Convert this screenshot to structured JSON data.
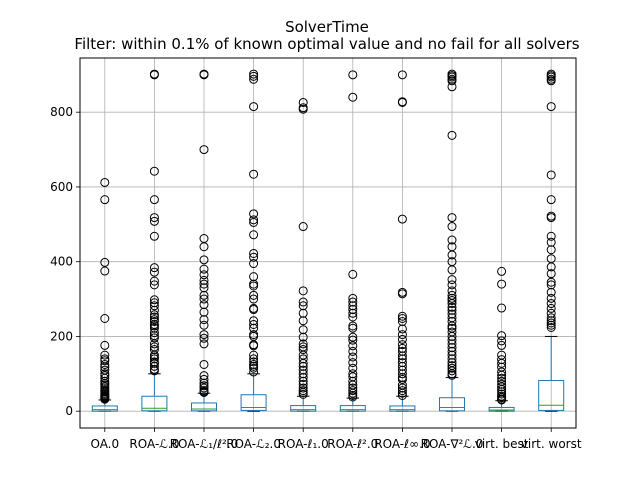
{
  "chart_data": {
    "type": "box",
    "title": "SolverTime",
    "subtitle": "Filter: within 0.1% of known optimal value and no fail for all solvers",
    "xlabel": "",
    "ylabel": "",
    "ylim": [
      -45,
      945
    ],
    "yticks": [
      0,
      200,
      400,
      600,
      800
    ],
    "grid": true,
    "categories": [
      "OA.0",
      "ROA-ℒ.0",
      "ROA-ℒ₁/ℓ².0",
      "ROA-ℒ₂.0",
      "ROA-ℓ₁.0",
      "ROA-ℓ².0",
      "ROA-ℓ∞.0",
      "ROA-∇²ℒ.0",
      "virt. best",
      "virt. worst"
    ],
    "boxes": [
      {
        "q1": 0,
        "median": 4,
        "q3": 14,
        "whisker_low": 0,
        "whisker_high": 30,
        "outliers": [
          612,
          566,
          398,
          375,
          248,
          176,
          150,
          140,
          135,
          125,
          118,
          110,
          100,
          95,
          88,
          80,
          74,
          70,
          65,
          60,
          56,
          52,
          48,
          45,
          42,
          40,
          38,
          36,
          34,
          32
        ]
      },
      {
        "q1": 1,
        "median": 8,
        "q3": 40,
        "whisker_low": 0,
        "whisker_high": 100,
        "outliers": [
          902,
          900,
          642,
          566,
          518,
          508,
          468,
          384,
          372,
          348,
          338,
          298,
          290,
          282,
          270,
          258,
          252,
          245,
          240,
          232,
          228,
          222,
          210,
          202,
          196,
          180,
          172,
          165,
          150,
          145,
          140,
          132,
          128,
          120,
          112,
          108
        ]
      },
      {
        "q1": 1,
        "median": 6,
        "q3": 22,
        "whisker_low": 0,
        "whisker_high": 48,
        "outliers": [
          902,
          900,
          700,
          462,
          440,
          405,
          380,
          365,
          350,
          340,
          330,
          310,
          300,
          285,
          265,
          245,
          230,
          205,
          195,
          180,
          125,
          95,
          85,
          75,
          68,
          62,
          55,
          52,
          50
        ]
      },
      {
        "q1": 2,
        "median": 10,
        "q3": 44,
        "whisker_low": 0,
        "whisker_high": 100,
        "outliers": [
          902,
          896,
          888,
          815,
          634,
          528,
          512,
          505,
          472,
          422,
          412,
          395,
          360,
          340,
          335,
          310,
          300,
          275,
          272,
          242,
          232,
          222,
          205,
          200,
          178,
          175,
          150,
          140,
          132,
          125,
          120,
          115,
          105
        ]
      },
      {
        "q1": 0,
        "median": 4,
        "q3": 15,
        "whisker_low": 0,
        "whisker_high": 40,
        "outliers": [
          826,
          812,
          808,
          494,
          322,
          292,
          282,
          262,
          242,
          218,
          198,
          180,
          172,
          165,
          150,
          140,
          128,
          120,
          110,
          100,
          90,
          80,
          72,
          62,
          55,
          50,
          45
        ]
      },
      {
        "q1": 0,
        "median": 4,
        "q3": 15,
        "whisker_low": 0,
        "whisker_high": 35,
        "outliers": [
          900,
          840,
          366,
          302,
          292,
          282,
          272,
          262,
          252,
          228,
          222,
          198,
          190,
          175,
          160,
          145,
          130,
          115,
          100,
          92,
          80,
          70,
          62,
          55,
          48,
          42,
          38
        ]
      },
      {
        "q1": 0,
        "median": 4,
        "q3": 14,
        "whisker_low": 0,
        "whisker_high": 40,
        "outliers": [
          900,
          828,
          826,
          514,
          318,
          314,
          254,
          248,
          240,
          220,
          205,
          192,
          178,
          168,
          160,
          148,
          140,
          130,
          120,
          110,
          100,
          90,
          85,
          70,
          62,
          55,
          48,
          42
        ]
      },
      {
        "q1": 1,
        "median": 10,
        "q3": 36,
        "whisker_low": 0,
        "whisker_high": 90,
        "outliers": [
          902,
          898,
          894,
          888,
          884,
          868,
          738,
          518,
          494,
          458,
          440,
          418,
          400,
          378,
          352,
          338,
          322,
          310,
          302,
          296,
          288,
          278,
          270,
          260,
          250,
          240,
          228,
          222,
          212,
          200,
          190,
          180,
          170,
          160,
          150,
          140,
          130,
          122,
          115,
          108,
          100,
          96
        ]
      },
      {
        "q1": 0,
        "median": 3,
        "q3": 10,
        "whisker_low": 0,
        "whisker_high": 28,
        "outliers": [
          374,
          340,
          276,
          202,
          188,
          176,
          150,
          138,
          128,
          118,
          105,
          96,
          88,
          80,
          72,
          65,
          58,
          52,
          46,
          40,
          36,
          32,
          30
        ]
      },
      {
        "q1": 2,
        "median": 16,
        "q3": 82,
        "whisker_low": 0,
        "whisker_high": 200,
        "outliers": [
          902,
          898,
          894,
          888,
          884,
          815,
          632,
          566,
          522,
          518,
          468,
          452,
          432,
          408,
          386,
          368,
          345,
          338,
          318,
          302,
          288,
          275,
          262,
          250,
          242,
          236,
          230,
          224
        ]
      }
    ]
  },
  "colors": {
    "box": "#1f77b4",
    "median": "#2ca02c",
    "whisker": "#000000",
    "grid": "#b0b0b0",
    "outlier": "#000000",
    "axes": "#000000"
  }
}
